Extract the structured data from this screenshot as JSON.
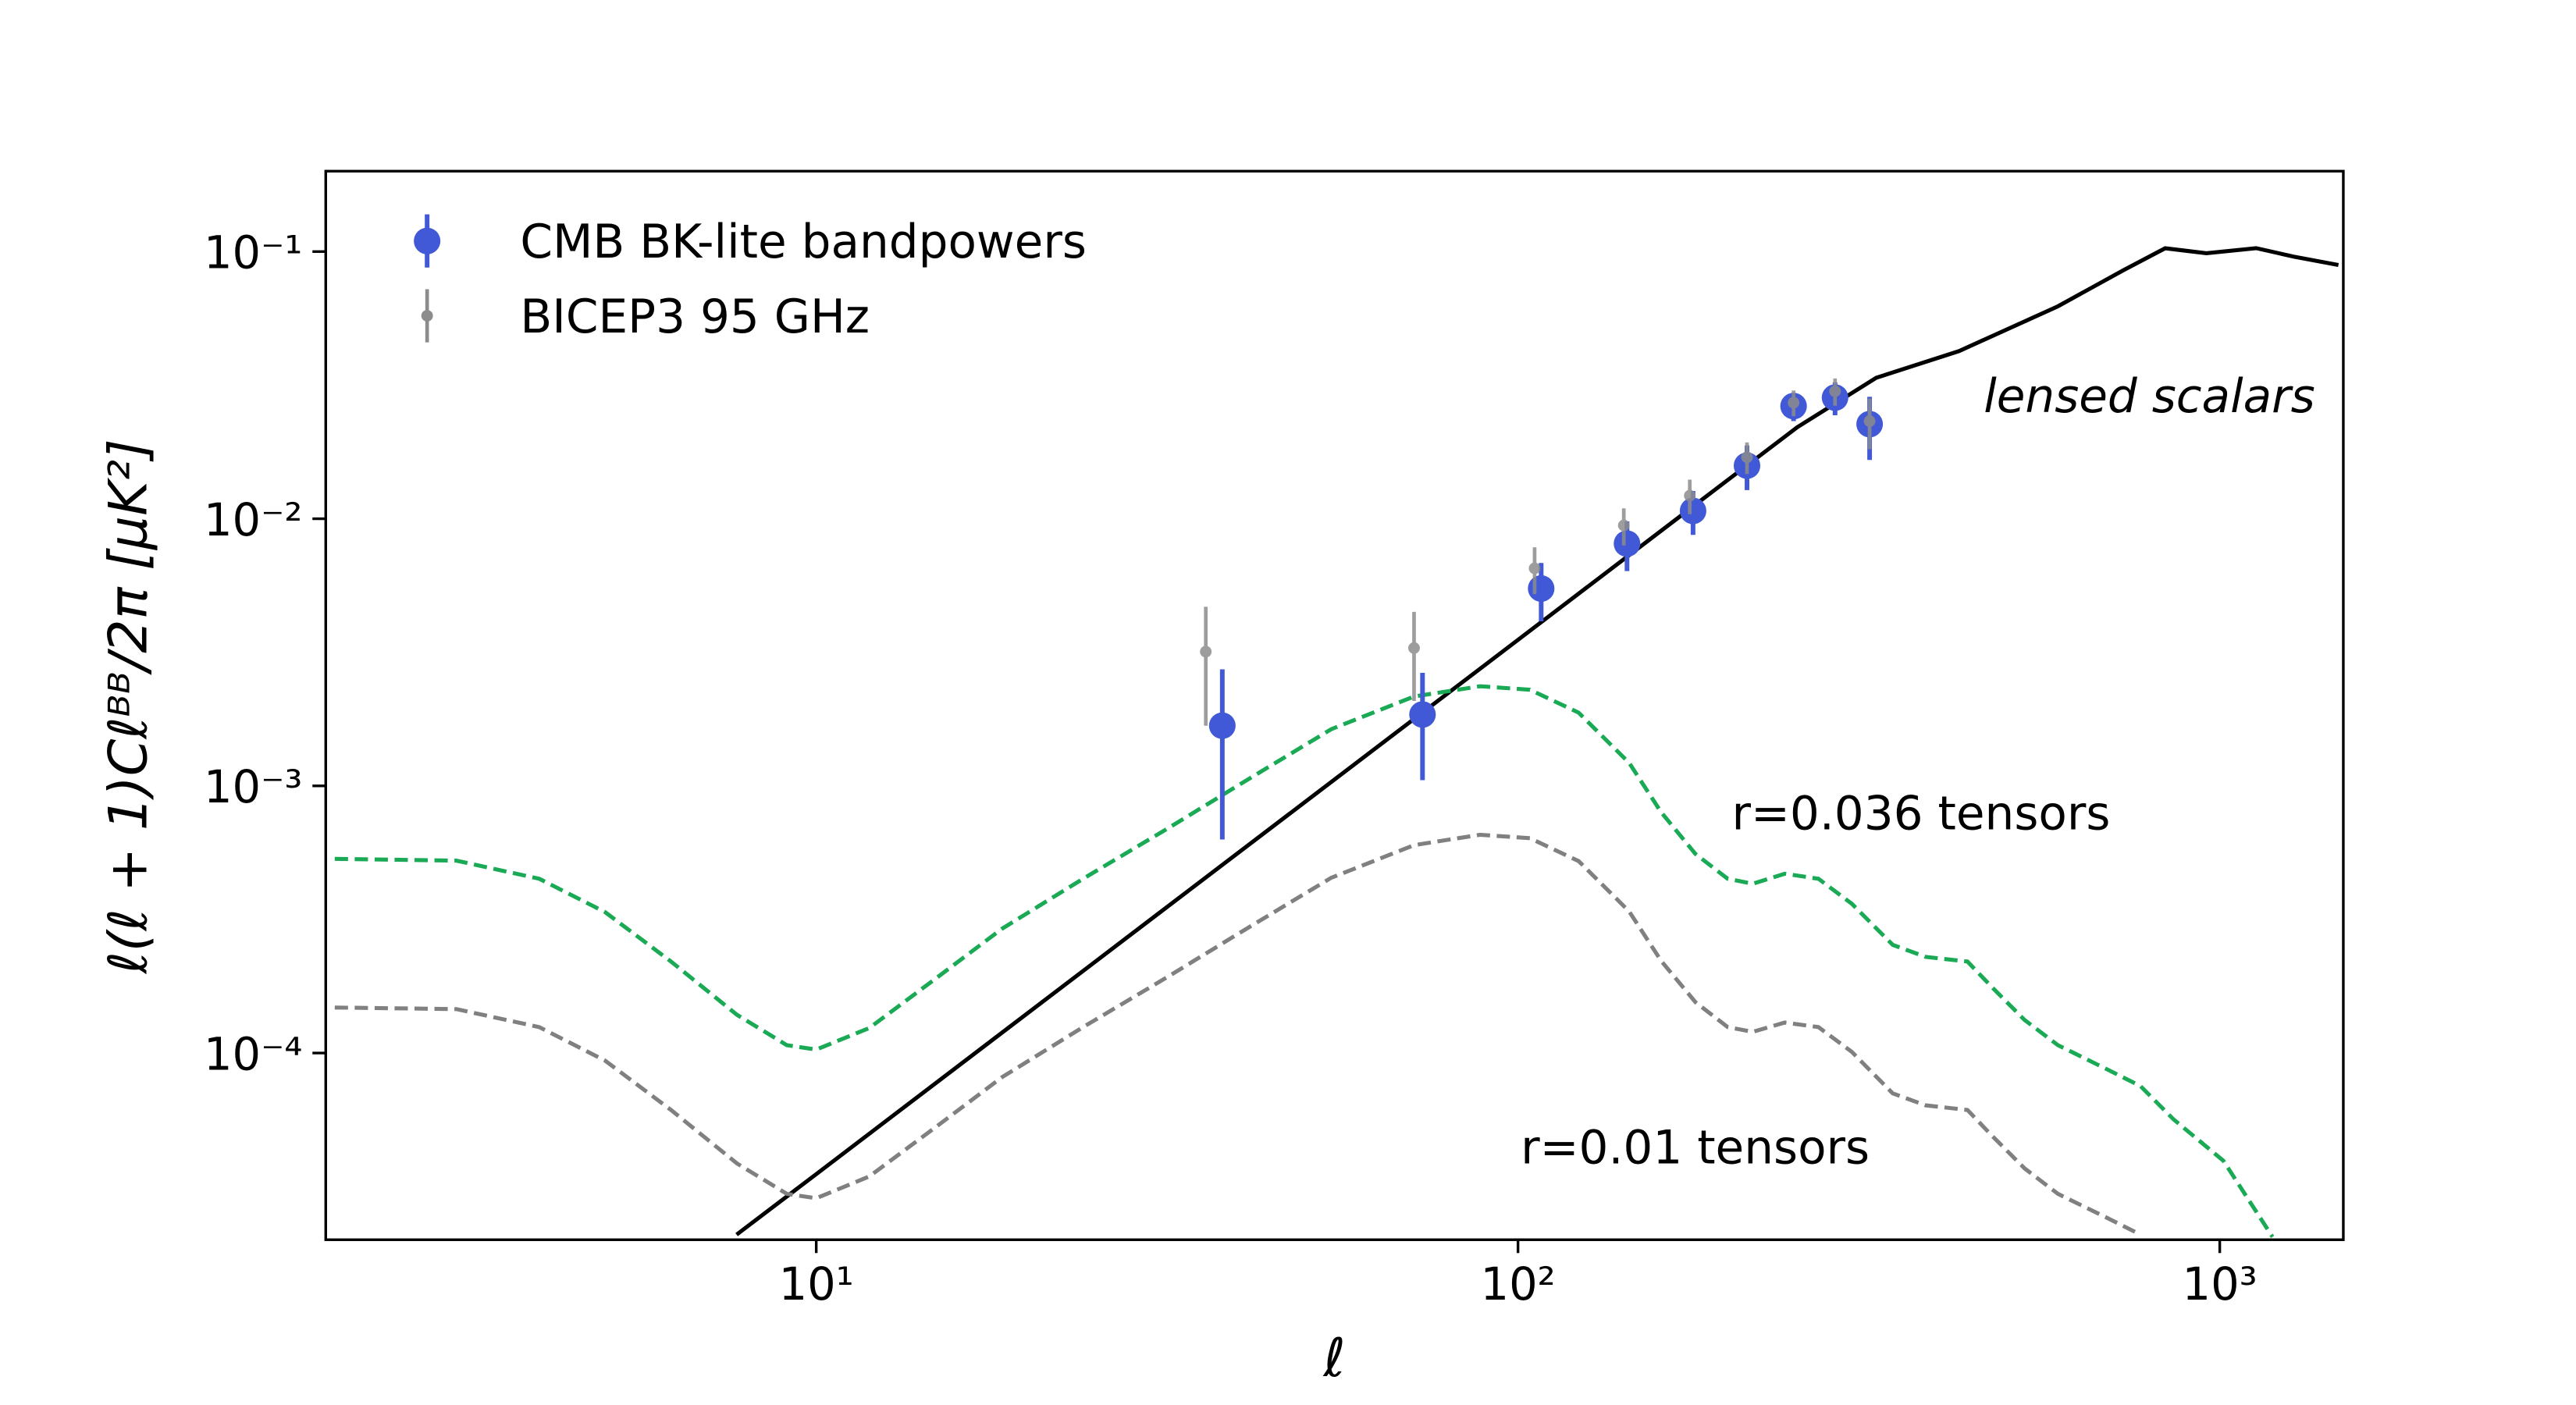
{
  "chart_data": {
    "type": "line",
    "xlabel": "ℓ",
    "ylabel": "ℓ(ℓ + 1)Cℓᴮᴮ/2π [μK²]",
    "xscale": "log",
    "yscale": "log",
    "grid": false,
    "legend": "upper left",
    "xlim": [
      2,
      1500
    ],
    "ylim": [
      2e-05,
      0.2
    ],
    "xticks": [
      {
        "value": 10,
        "label": "10¹"
      },
      {
        "value": 100,
        "label": "10²"
      },
      {
        "value": 1000,
        "label": "10³"
      }
    ],
    "yticks": [
      {
        "value": 0.0001,
        "label": "10⁻⁴"
      },
      {
        "value": 0.001,
        "label": "10⁻³"
      },
      {
        "value": 0.01,
        "label": "10⁻²"
      },
      {
        "value": 0.1,
        "label": "10⁻¹"
      }
    ],
    "annotations": [
      "lensed scalars",
      "r=0.036 tensors",
      "r=0.01 tensors"
    ],
    "series": [
      {
        "name": "CMB BK-lite bandpowers",
        "kind": "errorbar",
        "color": "#4159d6",
        "x": [
          37.9,
          73.1,
          107.9,
          143,
          177.6,
          212,
          247,
          283,
          317
        ],
        "values": [
          0.00168,
          0.00185,
          0.00548,
          0.00807,
          0.0107,
          0.0158,
          0.0264,
          0.0284,
          0.0226
        ],
        "yerr": [
          0.00105,
          0.0008,
          0.00135,
          0.0017,
          0.002,
          0.003,
          0.0032,
          0.004,
          0.006
        ]
      },
      {
        "name": "BICEP3 95 GHz",
        "kind": "errorbar",
        "color": "#8c8c8c",
        "x": [
          35.9,
          71.1,
          105.6,
          141.5,
          175.7,
          212,
          247,
          283,
          317
        ],
        "values": [
          0.00318,
          0.00328,
          0.00652,
          0.00944,
          0.0122,
          0.017,
          0.0272,
          0.03,
          0.0232
        ],
        "yerr": [
          0.0015,
          0.0012,
          0.0013,
          0.0015,
          0.0018,
          0.0023,
          0.003,
          0.0035,
          0.005
        ]
      },
      {
        "kind": "line",
        "linestyle": "solid",
        "color": "#000000",
        "x": [
          7.7,
          10,
          30,
          100,
          200,
          250,
          324,
          425,
          588,
          731,
          836,
          957,
          1127,
          1274,
          1476
        ],
        "values": [
          2.09e-05,
          3.52e-05,
          0.000317,
          0.00352,
          0.0141,
          0.022,
          0.0337,
          0.0424,
          0.0624,
          0.0855,
          0.1029,
          0.0986,
          0.103,
          0.0958,
          0.0891
        ]
      },
      {
        "kind": "line",
        "linestyle": "dashed",
        "color": "#1aaa55",
        "x": [
          2.06,
          3.07,
          4.03,
          5.0,
          6.21,
          7.71,
          9.08,
          10,
          11.9,
          14.8,
          18.4,
          24.0,
          31.6,
          41.3,
          54.2,
          71.1,
          88.3,
          104,
          122,
          144,
          160,
          179,
          199,
          216,
          240,
          268,
          299,
          342,
          381,
          437,
          473,
          527,
          588,
          692,
          771,
          859,
          1012,
          1189
        ],
        "values": [
          0.000533,
          0.000525,
          0.000449,
          0.000337,
          0.00022,
          0.000139,
          0.000107,
          0.000103,
          0.000124,
          0.00019,
          0.000292,
          0.000449,
          0.00069,
          0.00106,
          0.00163,
          0.00216,
          0.00236,
          0.00229,
          0.00188,
          0.00122,
          0.000796,
          0.000556,
          0.000449,
          0.00043,
          0.000469,
          0.000449,
          0.000362,
          0.000254,
          0.000229,
          0.00022,
          0.000177,
          0.000133,
          0.000107,
          8.67e-05,
          7.52e-05,
          5.65e-05,
          3.95e-05,
          2.05e-05
        ]
      },
      {
        "kind": "line",
        "linestyle": "dashed",
        "color": "#808080",
        "x": [
          2.06,
          3.07,
          4.03,
          5.0,
          6.21,
          7.71,
          9.08,
          10,
          11.9,
          14.8,
          18.4,
          24.0,
          31.6,
          41.3,
          54.2,
          71.1,
          88.3,
          104,
          122,
          144,
          160,
          179,
          199,
          216,
          240,
          268,
          299,
          342,
          381,
          437,
          473,
          527,
          588,
          692,
          771
        ],
        "values": [
          0.000148,
          0.000146,
          0.000125,
          9.37e-05,
          6.12e-05,
          3.86e-05,
          2.97e-05,
          2.86e-05,
          3.45e-05,
          5.28e-05,
          8.12e-05,
          0.000125,
          0.000192,
          0.000295,
          0.000453,
          0.0006,
          0.000656,
          0.000637,
          0.000523,
          0.000339,
          0.000221,
          0.000155,
          0.000125,
          0.00012,
          0.00013,
          0.000125,
          0.000101,
          7.06e-05,
          6.37e-05,
          6.12e-05,
          4.92e-05,
          3.7e-05,
          2.97e-05,
          2.41e-05,
          2.09e-05
        ]
      }
    ]
  }
}
